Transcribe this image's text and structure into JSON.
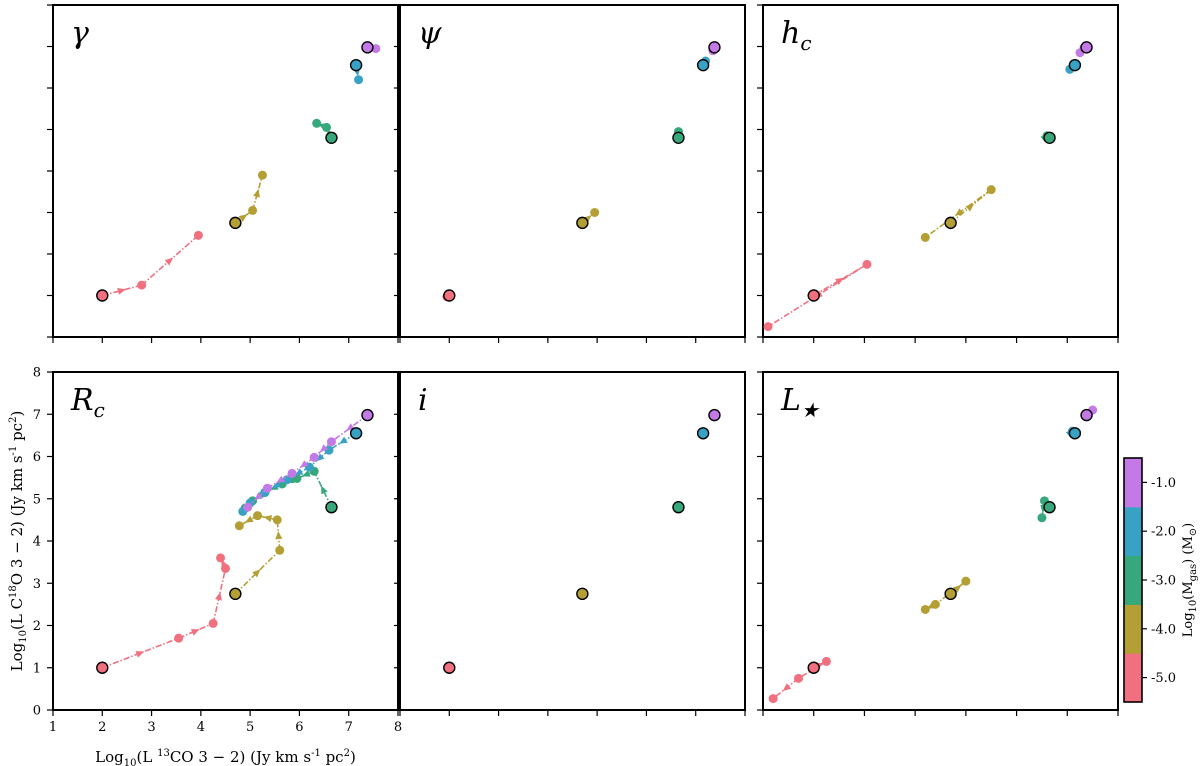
{
  "chart_data": {
    "type": "scatter",
    "xlabel": "Log$_{10}$(L $^{13}$CO 3 − 2) (Jy km s$^{-1}$ pc$^{2}$)",
    "ylabel": "Log$_{10}$(L C$^{18}$O 3 − 2) (Jy km s$^{-1}$ pc$^{2}$)",
    "xlim": [
      1,
      8
    ],
    "ylim": [
      0,
      8
    ],
    "x_ticks": [
      1,
      2,
      3,
      4,
      5,
      6,
      7,
      8
    ],
    "y_ticks": [
      0,
      1,
      2,
      3,
      4,
      5,
      6,
      7,
      8
    ],
    "colorbar": {
      "label": "Log$_{10}$(M$_{gas}$) (M$_{\\odot}$)",
      "tick_labels": [
        "-5.0",
        "-4.0",
        "-3.0",
        "-2.0",
        "-1.0"
      ],
      "ticks": [
        -5,
        -4,
        -3,
        -2,
        -1
      ],
      "colors": [
        "#f07080",
        "#b39f33",
        "#36a87c",
        "#38a2c4",
        "#c47ae6"
      ]
    },
    "baseline": [
      {
        "mass": -5,
        "x": 2.0,
        "y": 1.0
      },
      {
        "mass": -4,
        "x": 4.7,
        "y": 2.75
      },
      {
        "mass": -3,
        "x": 6.65,
        "y": 4.8
      },
      {
        "mass": -2,
        "x": 7.15,
        "y": 6.55
      },
      {
        "mass": -1,
        "x": 7.38,
        "y": 6.98
      }
    ],
    "panels": [
      {
        "label": "γ",
        "label_tex": "gamma",
        "tracks": [
          {
            "mass": -5,
            "points": [
              [
                2.0,
                1.0
              ],
              [
                2.8,
                1.25
              ],
              [
                3.95,
                2.45
              ]
            ]
          },
          {
            "mass": -4,
            "points": [
              [
                4.7,
                2.75
              ],
              [
                5.05,
                3.05
              ],
              [
                5.25,
                3.9
              ]
            ]
          },
          {
            "mass": -3,
            "points": [
              [
                6.65,
                4.8
              ],
              [
                6.55,
                5.05
              ],
              [
                6.35,
                5.15
              ]
            ]
          },
          {
            "mass": -2,
            "points": [
              [
                7.15,
                6.55
              ],
              [
                7.2,
                6.2
              ]
            ]
          },
          {
            "mass": -1,
            "points": [
              [
                7.38,
                6.98
              ],
              [
                7.55,
                6.95
              ]
            ]
          }
        ]
      },
      {
        "label": "ψ",
        "label_tex": "psi",
        "tracks": [
          {
            "mass": -5,
            "points": [
              [
                2.0,
                1.0
              ],
              [
                1.95,
                0.97
              ]
            ]
          },
          {
            "mass": -4,
            "points": [
              [
                4.7,
                2.75
              ],
              [
                4.95,
                3.0
              ]
            ]
          },
          {
            "mass": -3,
            "points": [
              [
                6.65,
                4.8
              ],
              [
                6.65,
                4.95
              ]
            ]
          },
          {
            "mass": -2,
            "points": [
              [
                7.15,
                6.55
              ],
              [
                7.2,
                6.65
              ]
            ]
          },
          {
            "mass": -1,
            "points": [
              [
                7.38,
                6.98
              ],
              [
                7.35,
                6.9
              ]
            ]
          }
        ]
      },
      {
        "label": "h_c",
        "label_tex": "h_c",
        "tracks": [
          {
            "mass": -5,
            "points": [
              [
                2.0,
                1.0
              ],
              [
                3.05,
                1.75
              ],
              [
                1.1,
                0.25
              ]
            ]
          },
          {
            "mass": -4,
            "points": [
              [
                4.7,
                2.75
              ],
              [
                5.5,
                3.55
              ],
              [
                4.2,
                2.4
              ]
            ]
          },
          {
            "mass": -3,
            "points": [
              [
                6.55,
                4.8
              ],
              [
                6.6,
                4.85
              ]
            ]
          },
          {
            "mass": -2,
            "points": [
              [
                7.1,
                6.55
              ],
              [
                7.05,
                6.45
              ]
            ]
          },
          {
            "mass": -1,
            "points": [
              [
                7.3,
                6.98
              ],
              [
                7.25,
                6.85
              ]
            ]
          }
        ]
      },
      {
        "label": "R_c",
        "label_tex": "R_c",
        "tracks": [
          {
            "mass": -5,
            "points": [
              [
                2.0,
                1.0
              ],
              [
                3.55,
                1.7
              ],
              [
                4.25,
                2.05
              ],
              [
                4.5,
                3.35
              ],
              [
                4.4,
                3.6
              ]
            ]
          },
          {
            "mass": -4,
            "points": [
              [
                4.7,
                2.75
              ],
              [
                5.6,
                3.78
              ],
              [
                5.55,
                4.5
              ],
              [
                5.15,
                4.6
              ],
              [
                4.78,
                4.36
              ]
            ]
          },
          {
            "mass": -3,
            "points": [
              [
                6.65,
                4.8
              ],
              [
                6.3,
                5.65
              ],
              [
                5.95,
                5.48
              ],
              [
                5.65,
                5.35
              ],
              [
                5.3,
                5.15
              ],
              [
                5.05,
                4.95
              ],
              [
                4.9,
                4.78
              ]
            ]
          },
          {
            "mass": -2,
            "points": [
              [
                7.15,
                6.55
              ],
              [
                6.6,
                6.15
              ],
              [
                6.2,
                5.75
              ],
              [
                5.75,
                5.45
              ],
              [
                5.3,
                5.15
              ],
              [
                5.0,
                4.9
              ],
              [
                4.85,
                4.7
              ]
            ]
          },
          {
            "mass": -1,
            "points": [
              [
                7.38,
                6.98
              ],
              [
                6.65,
                6.35
              ],
              [
                6.3,
                5.98
              ],
              [
                5.85,
                5.6
              ],
              [
                5.35,
                5.25
              ],
              [
                4.95,
                4.8
              ]
            ]
          }
        ]
      },
      {
        "label": "i",
        "label_tex": "i",
        "tracks": []
      },
      {
        "label": "L_★",
        "label_tex": "L_star",
        "tracks": [
          {
            "mass": -5,
            "points": [
              [
                2.0,
                1.0
              ],
              [
                2.25,
                1.15
              ],
              [
                1.7,
                0.75
              ],
              [
                1.2,
                0.27
              ]
            ]
          },
          {
            "mass": -4,
            "points": [
              [
                4.7,
                2.75
              ],
              [
                5.0,
                3.05
              ],
              [
                4.4,
                2.5
              ],
              [
                4.2,
                2.38
              ]
            ]
          },
          {
            "mass": -3,
            "points": [
              [
                6.55,
                4.8
              ],
              [
                6.55,
                4.95
              ],
              [
                6.5,
                4.55
              ]
            ]
          },
          {
            "mass": -2,
            "points": [
              [
                7.05,
                6.55
              ],
              [
                7.1,
                6.6
              ]
            ]
          },
          {
            "mass": -1,
            "points": [
              [
                7.3,
                6.98
              ],
              [
                7.5,
                7.1
              ]
            ]
          }
        ]
      }
    ]
  }
}
